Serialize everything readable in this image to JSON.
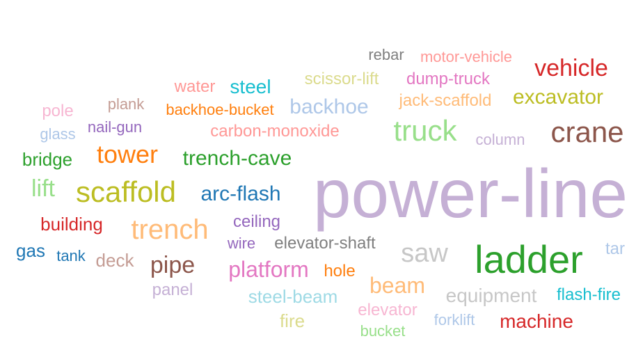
{
  "words": [
    {
      "text": "power-line",
      "color": "#c5b0d5"
    },
    {
      "text": "ladder",
      "color": "#2ca02c"
    },
    {
      "text": "crane",
      "color": "#8c564b"
    },
    {
      "text": "truck",
      "color": "#98df8a"
    },
    {
      "text": "vehicle",
      "color": "#d62728"
    },
    {
      "text": "excavator",
      "color": "#bcbd22"
    },
    {
      "text": "scaffold",
      "color": "#bcbd22"
    },
    {
      "text": "trench",
      "color": "#ffbb78"
    },
    {
      "text": "tower",
      "color": "#ff7f0e"
    },
    {
      "text": "trench-cave",
      "color": "#2ca02c"
    },
    {
      "text": "arc-flash",
      "color": "#1f77b4"
    },
    {
      "text": "saw",
      "color": "#c7c7c7"
    },
    {
      "text": "backhoe",
      "color": "#aec7e8"
    },
    {
      "text": "platform",
      "color": "#e377c2"
    },
    {
      "text": "pipe",
      "color": "#8c564b"
    },
    {
      "text": "beam",
      "color": "#ffbb78"
    },
    {
      "text": "steel",
      "color": "#17becf"
    },
    {
      "text": "water",
      "color": "#ff9896"
    },
    {
      "text": "carbon-monoxide",
      "color": "#ff9896"
    },
    {
      "text": "scissor-lift",
      "color": "#dbdb8d"
    },
    {
      "text": "dump-truck",
      "color": "#e377c2"
    },
    {
      "text": "jack-scaffold",
      "color": "#ffbb78"
    },
    {
      "text": "motor-vehicle",
      "color": "#ff9896"
    },
    {
      "text": "rebar",
      "color": "#7f7f7f"
    },
    {
      "text": "backhoe-bucket",
      "color": "#ff7f0e"
    },
    {
      "text": "plank",
      "color": "#c49c94"
    },
    {
      "text": "pole",
      "color": "#f7b6d2"
    },
    {
      "text": "nail-gun",
      "color": "#9467bd"
    },
    {
      "text": "glass",
      "color": "#aec7e8"
    },
    {
      "text": "bridge",
      "color": "#2ca02c"
    },
    {
      "text": "lift",
      "color": "#98df8a"
    },
    {
      "text": "building",
      "color": "#d62728"
    },
    {
      "text": "gas",
      "color": "#1f77b4"
    },
    {
      "text": "tank",
      "color": "#1f77b4"
    },
    {
      "text": "deck",
      "color": "#c49c94"
    },
    {
      "text": "panel",
      "color": "#c5b0d5"
    },
    {
      "text": "ceiling",
      "color": "#9467bd"
    },
    {
      "text": "wire",
      "color": "#9467bd"
    },
    {
      "text": "elevator-shaft",
      "color": "#7f7f7f"
    },
    {
      "text": "hole",
      "color": "#ff7f0e"
    },
    {
      "text": "steel-beam",
      "color": "#9edae5"
    },
    {
      "text": "elevator",
      "color": "#f7b6d2"
    },
    {
      "text": "fire",
      "color": "#dbdb8d"
    },
    {
      "text": "bucket",
      "color": "#98df8a"
    },
    {
      "text": "forklift",
      "color": "#aec7e8"
    },
    {
      "text": "equipment",
      "color": "#c7c7c7"
    },
    {
      "text": "flash-fire",
      "color": "#17becf"
    },
    {
      "text": "machine",
      "color": "#d62728"
    },
    {
      "text": "tar",
      "color": "#aec7e8"
    },
    {
      "text": "column",
      "color": "#c5b0d5"
    }
  ]
}
